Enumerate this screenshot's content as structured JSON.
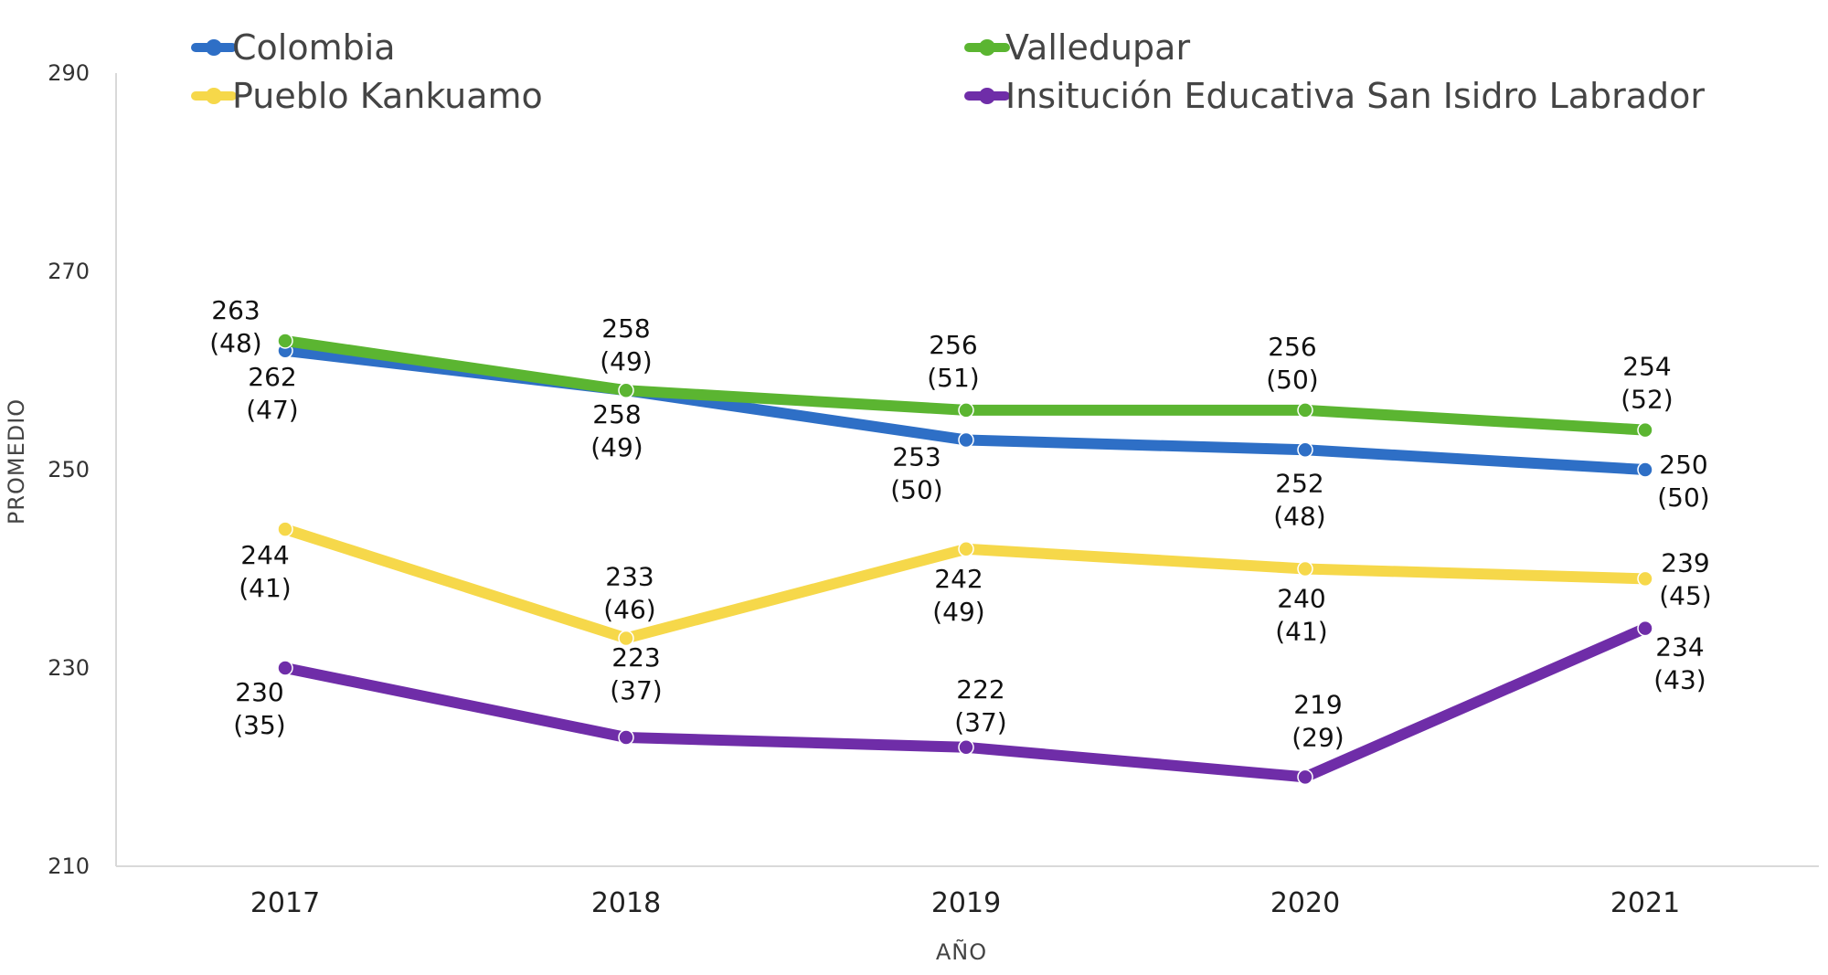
{
  "chart_data": {
    "type": "line",
    "xlabel": "AÑO",
    "ylabel": "PROMEDIO",
    "ylim": [
      210,
      290
    ],
    "yticks": [
      210,
      230,
      250,
      270,
      290
    ],
    "categories": [
      "2017",
      "2018",
      "2019",
      "2020",
      "2021"
    ],
    "grid": false,
    "legend_position": "top",
    "series": [
      {
        "name": "Colombia",
        "color": "#2E6FC6",
        "values": [
          262,
          258,
          253,
          252,
          250
        ],
        "labels": [
          "262\n(47)",
          "258\n(49)",
          "253\n(50)",
          "252\n(48)",
          "250\n(50)"
        ]
      },
      {
        "name": "Valledupar",
        "color": "#5BB531",
        "values": [
          263,
          258,
          256,
          256,
          254
        ],
        "labels": [
          "263\n(48)",
          "258\n(49)",
          "256\n(51)",
          "256\n(50)",
          "254\n(52)"
        ]
      },
      {
        "name": "Pueblo Kankuamo",
        "color": "#F6D84A",
        "values": [
          244,
          233,
          242,
          240,
          239
        ],
        "labels": [
          "244\n(41)",
          "233\n(46)",
          "242\n(49)",
          "240\n(41)",
          "239\n(45)"
        ]
      },
      {
        "name": "Insitución Educativa San Isidro Labrador",
        "color": "#6F2DA8",
        "values": [
          230,
          223,
          222,
          219,
          234
        ],
        "labels": [
          "230\n(35)",
          "223\n(37)",
          "222\n(37)",
          "219\n(29)",
          "234\n(43)"
        ]
      }
    ]
  }
}
